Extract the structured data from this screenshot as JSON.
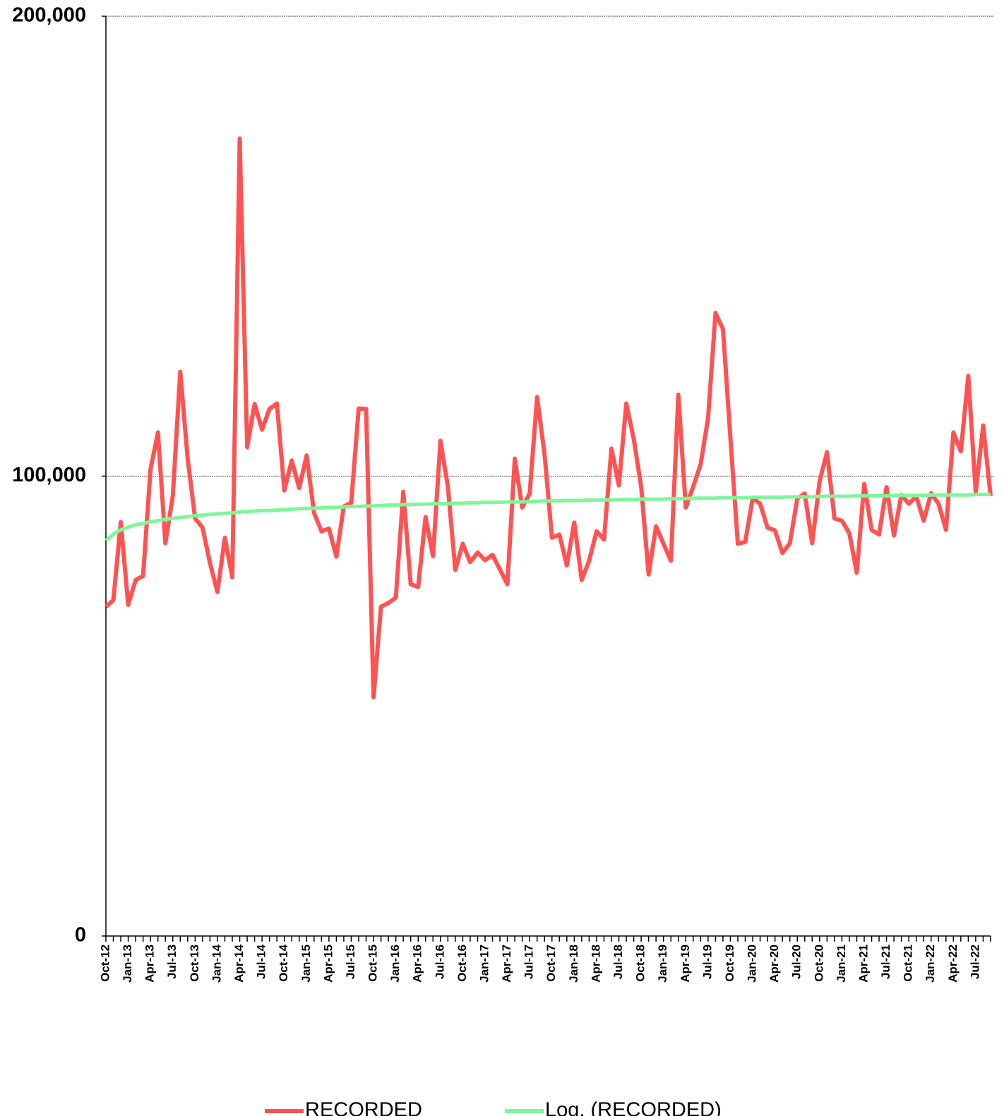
{
  "chart_data": {
    "type": "line",
    "categories": [
      "Oct-12",
      null,
      null,
      "Jan-13",
      null,
      null,
      "Apr-13",
      null,
      null,
      "Jul-13",
      null,
      null,
      "Oct-13",
      null,
      null,
      "Jan-14",
      null,
      null,
      "Apr-14",
      null,
      null,
      "Jul-14",
      null,
      null,
      "Oct-14",
      null,
      null,
      "Jan-15",
      null,
      null,
      "Apr-15",
      null,
      null,
      "Jul-15",
      null,
      null,
      "Oct-15",
      null,
      null,
      "Jan-16",
      null,
      null,
      "Apr-16",
      null,
      null,
      "Jul-16",
      null,
      null,
      "Oct-16",
      null,
      null,
      "Jan-17",
      null,
      null,
      "Apr-17",
      null,
      null,
      "Jul-17",
      null,
      null,
      "Oct-17",
      null,
      null,
      "Jan-18",
      null,
      null,
      "Apr-18",
      null,
      null,
      "Jul-18",
      null,
      null,
      "Oct-18",
      null,
      null,
      "Jan-19",
      null,
      null,
      "Apr-19",
      null,
      null,
      "Jul-19",
      null,
      null,
      "Oct-19",
      null,
      null,
      "Jan-20",
      null,
      null,
      "Apr-20",
      null,
      null,
      "Jul-20",
      null,
      null,
      "Oct-20",
      null,
      null,
      "Jan-21",
      null,
      null,
      "Apr-21",
      null,
      null,
      "Jul-21",
      null,
      null,
      "Oct-21",
      null,
      null,
      "Jan-22",
      null,
      null,
      "Apr-22",
      null,
      null,
      "Jul-22",
      null,
      null
    ],
    "series": [
      {
        "name": "RECORDED",
        "color": "#ff5252",
        "values": [
          71600,
          73000,
          90000,
          72000,
          77400,
          78300,
          101500,
          109500,
          85400,
          95700,
          122700,
          103800,
          90800,
          88800,
          81100,
          74800,
          86600,
          78000,
          173400,
          106300,
          115700,
          110100,
          114600,
          115800,
          96900,
          103400,
          97400,
          104500,
          92000,
          88000,
          88600,
          82500,
          93400,
          94200,
          114700,
          114600,
          51900,
          71600,
          72400,
          73600,
          96600,
          76500,
          75900,
          91100,
          82600,
          107700,
          97700,
          79600,
          85300,
          81300,
          83400,
          81700,
          82900,
          79700,
          76500,
          103800,
          93200,
          96200,
          117200,
          104800,
          86600,
          87300,
          80600,
          89900,
          77400,
          81600,
          88000,
          86200,
          106000,
          98000,
          115800,
          108100,
          97700,
          78600,
          89100,
          85300,
          81600,
          117700,
          93200,
          97700,
          102600,
          112600,
          135500,
          132000,
          108400,
          85300,
          85700,
          95200,
          94000,
          88800,
          88200,
          83300,
          85400,
          95100,
          96200,
          85400,
          98900,
          105200,
          90800,
          90300,
          87600,
          79000,
          98300,
          88300,
          87300,
          97600,
          87100,
          95900,
          94000,
          95600,
          90300,
          96300,
          94000,
          88300,
          109500,
          105400,
          121800,
          96500,
          111000,
          95700
        ]
      },
      {
        "name": "Log. (RECORDED)",
        "color": "#7ef79b",
        "values": [
          86000,
          87400,
          88300,
          88900,
          89400,
          89700,
          90100,
          90300,
          90600,
          90800,
          91000,
          91200,
          91400,
          91500,
          91700,
          91800,
          91900,
          92000,
          92200,
          92300,
          92400,
          92500,
          92500,
          92600,
          92700,
          92800,
          92900,
          93000,
          93000,
          93100,
          93200,
          93200,
          93300,
          93400,
          93400,
          93500,
          93500,
          93600,
          93700,
          93700,
          93800,
          93800,
          93900,
          93900,
          94000,
          94000,
          94000,
          94100,
          94100,
          94200,
          94200,
          94300,
          94300,
          94300,
          94400,
          94400,
          94400,
          94500,
          94500,
          94600,
          94600,
          94600,
          94700,
          94700,
          94700,
          94800,
          94800,
          94800,
          94800,
          94900,
          94900,
          94900,
          95000,
          95000,
          95000,
          95000,
          95100,
          95100,
          95100,
          95200,
          95200,
          95200,
          95200,
          95300,
          95300,
          95300,
          95300,
          95400,
          95400,
          95400,
          95400,
          95400,
          95500,
          95500,
          95500,
          95500,
          95600,
          95600,
          95600,
          95600,
          95600,
          95700,
          95700,
          95700,
          95700,
          95700,
          95800,
          95800,
          95800,
          95800,
          95800,
          95900,
          95900,
          95900,
          95900,
          95900,
          95900,
          96000,
          96000,
          96000
        ]
      }
    ],
    "ylim": [
      0,
      200000
    ],
    "yticks": [
      0,
      {
        "value": 100000,
        "label": "100,000"
      },
      {
        "value": 200000,
        "label": "200,000"
      }
    ],
    "grid": true,
    "legend": "bottom"
  }
}
